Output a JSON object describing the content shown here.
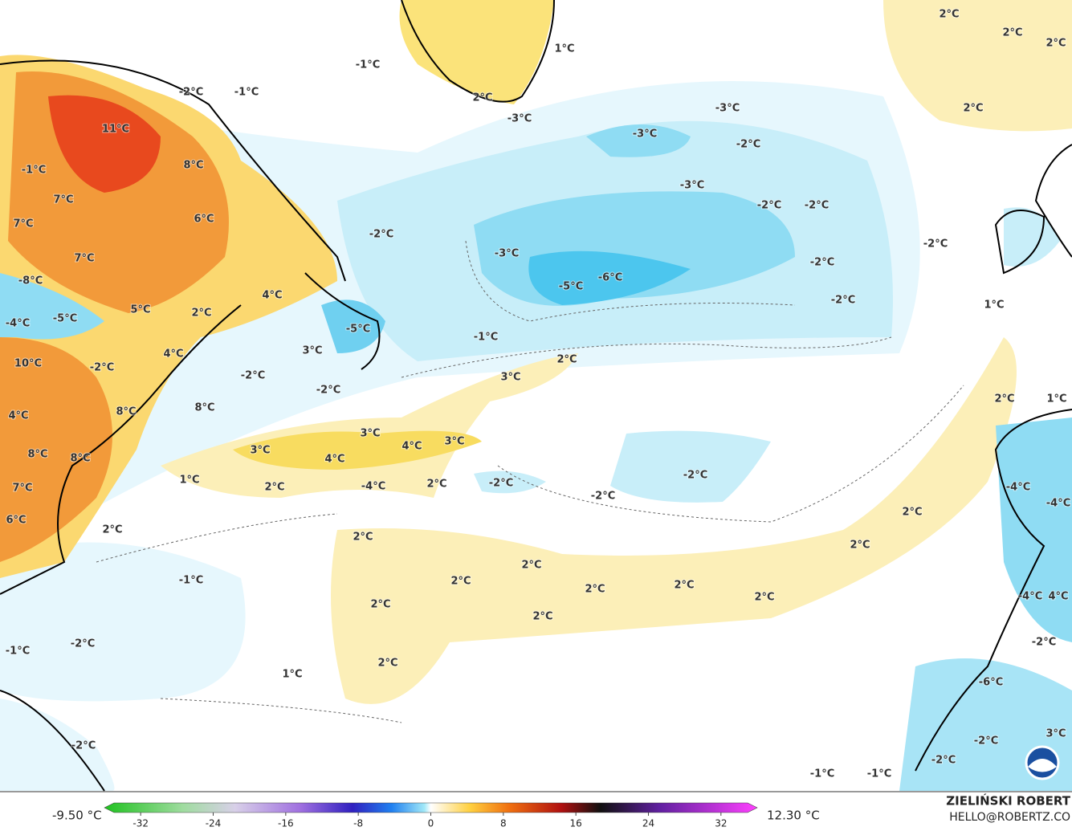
{
  "map": {
    "labels": [
      "-1°C",
      "-2°C",
      "-1°C",
      "11°C",
      "8°C",
      "-1°C",
      "7°C",
      "6°C",
      "7°C",
      "7°C",
      "-2°C",
      "-3°C",
      "-5°C",
      "-6°C",
      "-3°C",
      "-3°C",
      "-2°C",
      "-3°C",
      "-2°C",
      "-2°C",
      "-2°C",
      "-2°C",
      "-2°C",
      "1°C",
      "-3°C",
      "2°C",
      "2°C",
      "2°C",
      "2°C",
      "2°C",
      "-8°C",
      "5°C",
      "4°C",
      "2°C",
      "-5°C",
      "-4°C",
      "-5°C",
      "-1°C",
      "2°C",
      "3°C",
      "4°C",
      "10°C",
      "-2°C",
      "-2°C",
      "-2°C",
      "3°C",
      "4°C",
      "8°C",
      "8°C",
      "3°C",
      "4°C",
      "3°C",
      "3°C",
      "8°C",
      "8°C",
      "4°C",
      "1°C",
      "2°C",
      "-4°C",
      "2°C",
      "-2°C",
      "-2°C",
      "-2°C",
      "7°C",
      "6°C",
      "2°C",
      "2°C",
      "2°C",
      "2°C",
      "2°C",
      "2°C",
      "2°C",
      "2°C",
      "2°C",
      "2°C",
      "2°C",
      "-1°C",
      "-2°C",
      "-1°C",
      "2°C",
      "1°C",
      "-2°C",
      "1°C",
      "2°C",
      "1°C",
      "-4°C",
      "-4°C",
      "-4°C",
      "4°C",
      "-2°C",
      "-6°C",
      "-2°C",
      "3°C",
      "-2°C",
      "-1°C",
      "-1°C"
    ]
  },
  "colorbar": {
    "min_label": "-9.50 °C",
    "max_label": "12.30 °C",
    "range": [
      -36,
      36
    ],
    "ticks": [
      -32,
      -24,
      -16,
      -8,
      0,
      8,
      16,
      24,
      32
    ]
  },
  "credit": {
    "name": "ZIELIŃSKI ROBERT",
    "contact": "HELLO@ROBERTZ.CO"
  }
}
